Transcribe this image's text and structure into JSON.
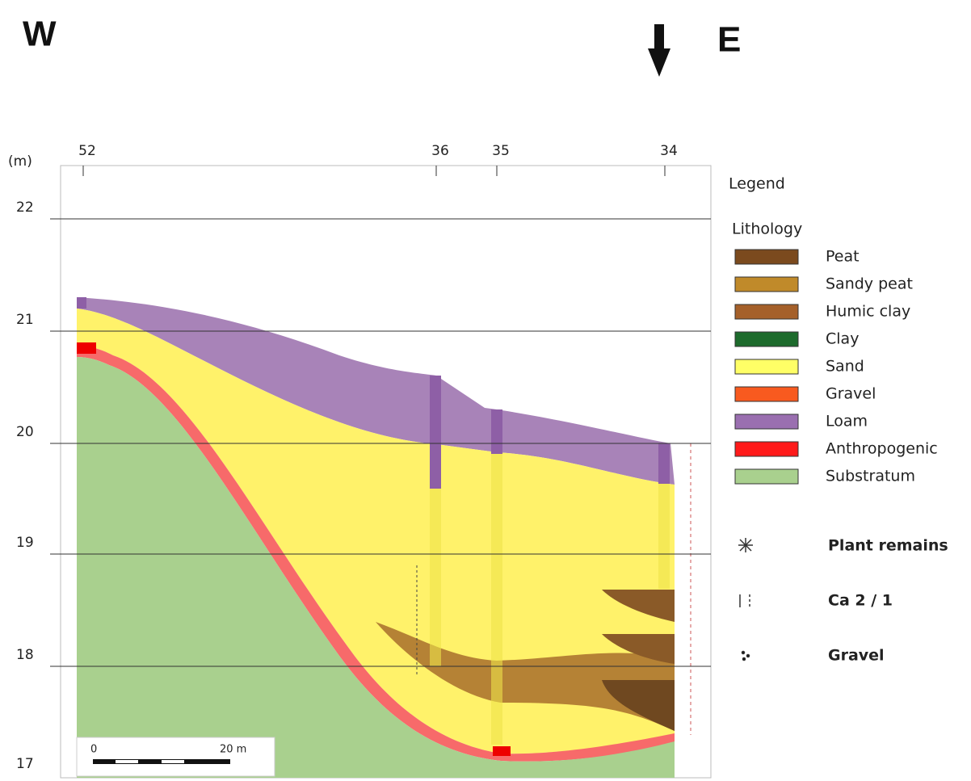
{
  "header": {
    "west": "W",
    "east": "E"
  },
  "axis": {
    "unit": "(m)",
    "ticks": [
      "22",
      "21",
      "20",
      "19",
      "18",
      "17"
    ]
  },
  "boreholes": [
    "52",
    "36",
    "35",
    "34"
  ],
  "legend": {
    "title": "Legend",
    "lithology": {
      "title": "Lithology",
      "items": [
        {
          "label": "Peat",
          "color": "#7b4a1e"
        },
        {
          "label": "Sandy peat",
          "color": "#c08a2a"
        },
        {
          "label": "Humic clay",
          "color": "#a5602a"
        },
        {
          "label": "Clay",
          "color": "#1d6b2c"
        },
        {
          "label": "Sand",
          "color": "#ffff66"
        },
        {
          "label": "Gravel",
          "color": "#f85a1f"
        },
        {
          "label": "Loam",
          "color": "#9a6fb0"
        },
        {
          "label": "Anthropogenic",
          "color": "#ff1a1a"
        },
        {
          "label": "Substratum",
          "color": "#a9d08e"
        }
      ]
    },
    "symbols": [
      "Plant remains",
      "Ca 2 / 1",
      "Gravel"
    ]
  },
  "scale": {
    "start": "0",
    "end": "20 m"
  }
}
